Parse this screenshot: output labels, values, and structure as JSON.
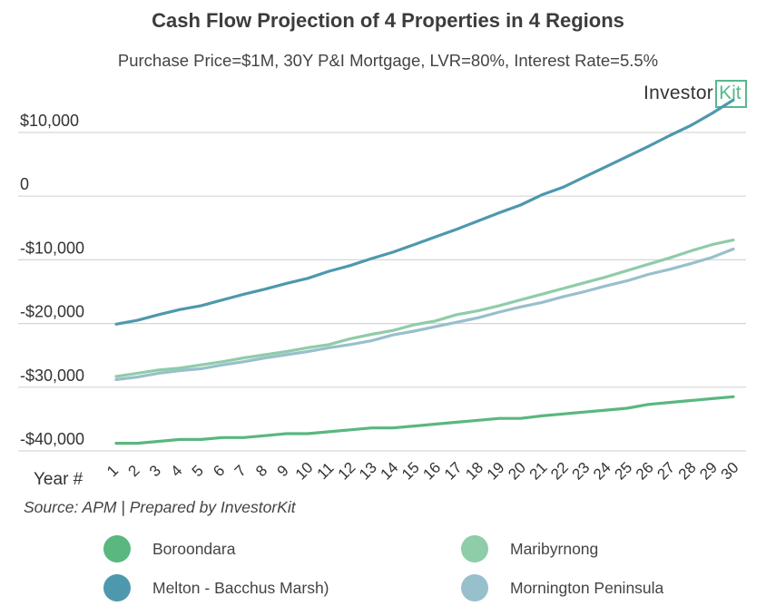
{
  "header": {
    "title": "Cash Flow Projection of 4 Properties in 4 Regions",
    "subtitle": "Purchase Price=$1M, 30Y P&I Mortgage, LVR=80%, Interest Rate=5.5%"
  },
  "logo": {
    "text": "Investor",
    "box_text": "Kit",
    "color": "#57b888"
  },
  "source": "Source: APM | Prepared by InvestorKit",
  "chart_data": {
    "type": "line",
    "xlabel": "Year #",
    "ylabel": "",
    "x": [
      1,
      2,
      3,
      4,
      5,
      6,
      7,
      8,
      9,
      10,
      11,
      12,
      13,
      14,
      15,
      16,
      17,
      18,
      19,
      20,
      21,
      22,
      23,
      24,
      25,
      26,
      27,
      28,
      29,
      30
    ],
    "ylim": [
      -40000,
      10000
    ],
    "yticks": [
      10000,
      0,
      -10000,
      -20000,
      -30000,
      -40000
    ],
    "ytick_labels": [
      "$10,000",
      "0",
      "-$10,000",
      "-$20,000",
      "-$30,000",
      "-$40,000"
    ],
    "grid": "horizontal",
    "legend": "bottom",
    "series": [
      {
        "name": "Boroondara",
        "color": "#5ab77f",
        "values": [
          -38800,
          -38800,
          -38500,
          -38200,
          -38200,
          -37900,
          -37900,
          -37600,
          -37300,
          -37300,
          -37000,
          -36700,
          -36400,
          -36400,
          -36100,
          -35800,
          -35500,
          -35200,
          -34900,
          -34900,
          -34500,
          -34200,
          -33900,
          -33600,
          -33300,
          -32700,
          -32400,
          -32100,
          -31800,
          -31500
        ]
      },
      {
        "name": "Maribyrnong",
        "color": "#8fcca8",
        "values": [
          -28300,
          -27800,
          -27300,
          -27000,
          -26500,
          -26000,
          -25400,
          -24900,
          -24400,
          -23800,
          -23300,
          -22400,
          -21700,
          -21100,
          -20200,
          -19600,
          -18600,
          -18000,
          -17200,
          -16300,
          -15400,
          -14500,
          -13600,
          -12700,
          -11700,
          -10700,
          -9700,
          -8600,
          -7600,
          -6900
        ]
      },
      {
        "name": "Melton - Bacchus Marsh)",
        "color": "#4e98ad",
        "values": [
          -20100,
          -19500,
          -18600,
          -17800,
          -17200,
          -16300,
          -15400,
          -14600,
          -13700,
          -12900,
          -11800,
          -10900,
          -9800,
          -8800,
          -7600,
          -6400,
          -5200,
          -3900,
          -2600,
          -1400,
          200,
          1400,
          3000,
          4600,
          6200,
          7800,
          9500,
          11100,
          13000,
          15100
        ]
      },
      {
        "name": "Mornington Peninsula",
        "color": "#98bfcc",
        "values": [
          -28800,
          -28400,
          -27800,
          -27400,
          -27100,
          -26500,
          -26000,
          -25400,
          -24900,
          -24400,
          -23800,
          -23300,
          -22700,
          -21800,
          -21200,
          -20500,
          -19800,
          -19100,
          -18200,
          -17400,
          -16700,
          -15800,
          -15000,
          -14100,
          -13300,
          -12300,
          -11500,
          -10600,
          -9600,
          -8300
        ]
      }
    ]
  }
}
